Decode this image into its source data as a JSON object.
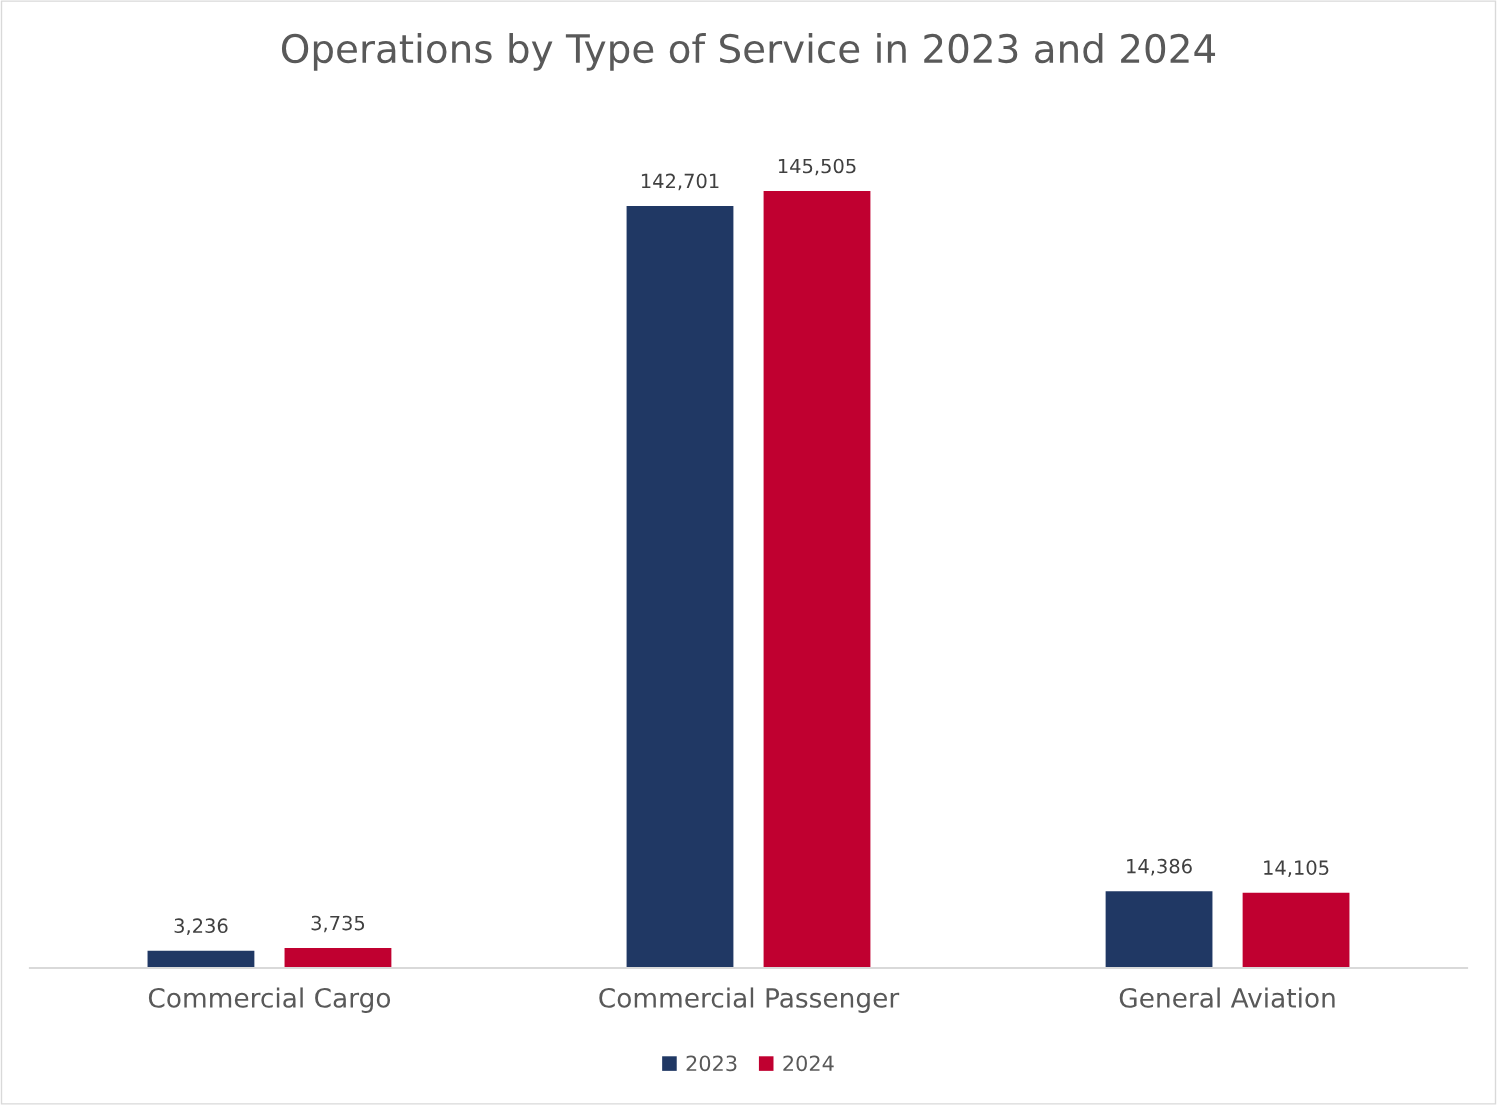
{
  "chart_data": {
    "type": "bar",
    "title": "Operations by Type of Service in 2023 and 2024",
    "categories": [
      "Commercial Cargo",
      "Commercial Passenger",
      "General Aviation"
    ],
    "series": [
      {
        "name": "2023",
        "color": "#203864",
        "values": [
          3236,
          142701,
          14386
        ],
        "value_labels": [
          "3,236",
          "142,701",
          "14,386"
        ]
      },
      {
        "name": "2024",
        "color": "#c00030",
        "values": [
          3735,
          145505,
          14105
        ],
        "value_labels": [
          "3,735",
          "145,505",
          "14,105"
        ]
      }
    ],
    "legend": "bottom"
  }
}
